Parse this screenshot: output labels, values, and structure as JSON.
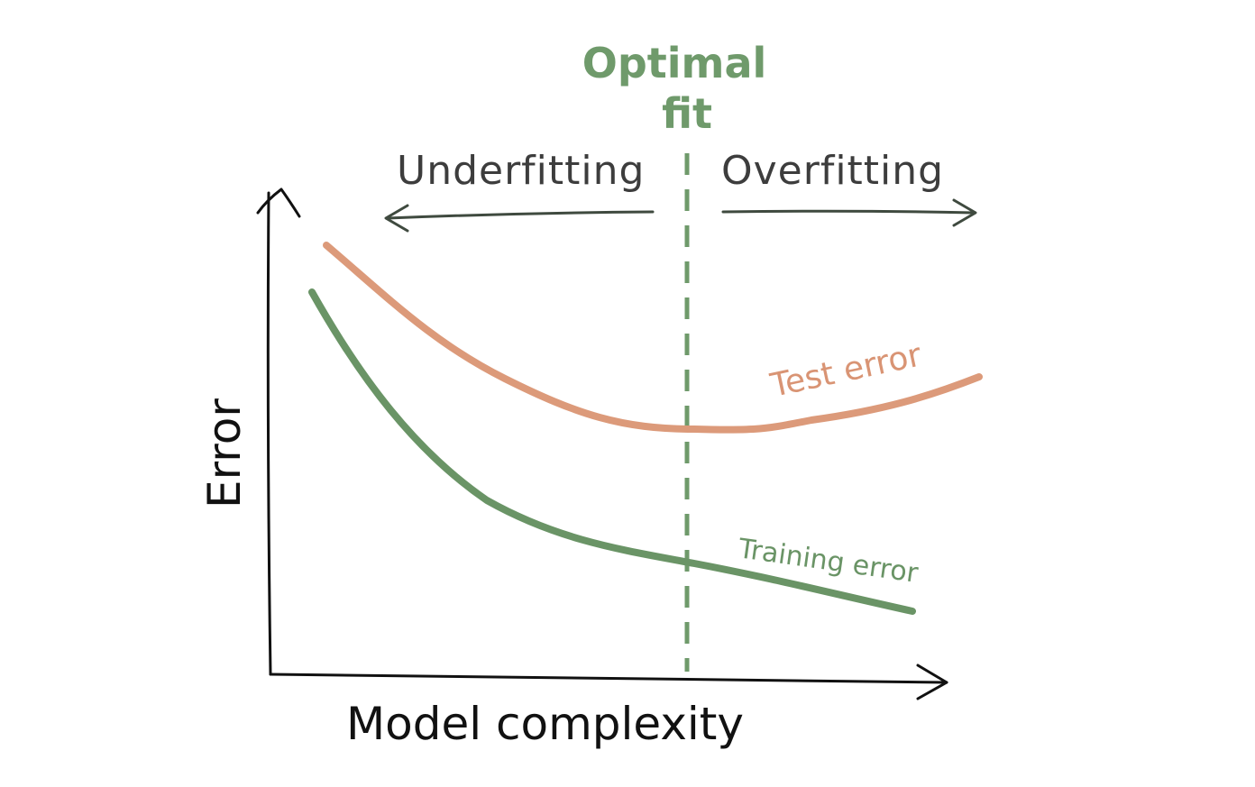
{
  "optimal_fit": {
    "line1": "Optimal",
    "line2": "fit",
    "color": "#6f9a6b"
  },
  "regions": {
    "underfitting": "Underfitting",
    "overfitting": "Overfitting"
  },
  "axes": {
    "x_label": "Model complexity",
    "y_label": "Error"
  },
  "curves": {
    "test": {
      "label": "Test error",
      "color": "#dc9a7a"
    },
    "training": {
      "label": "Training error",
      "color": "#6a9466"
    }
  }
}
